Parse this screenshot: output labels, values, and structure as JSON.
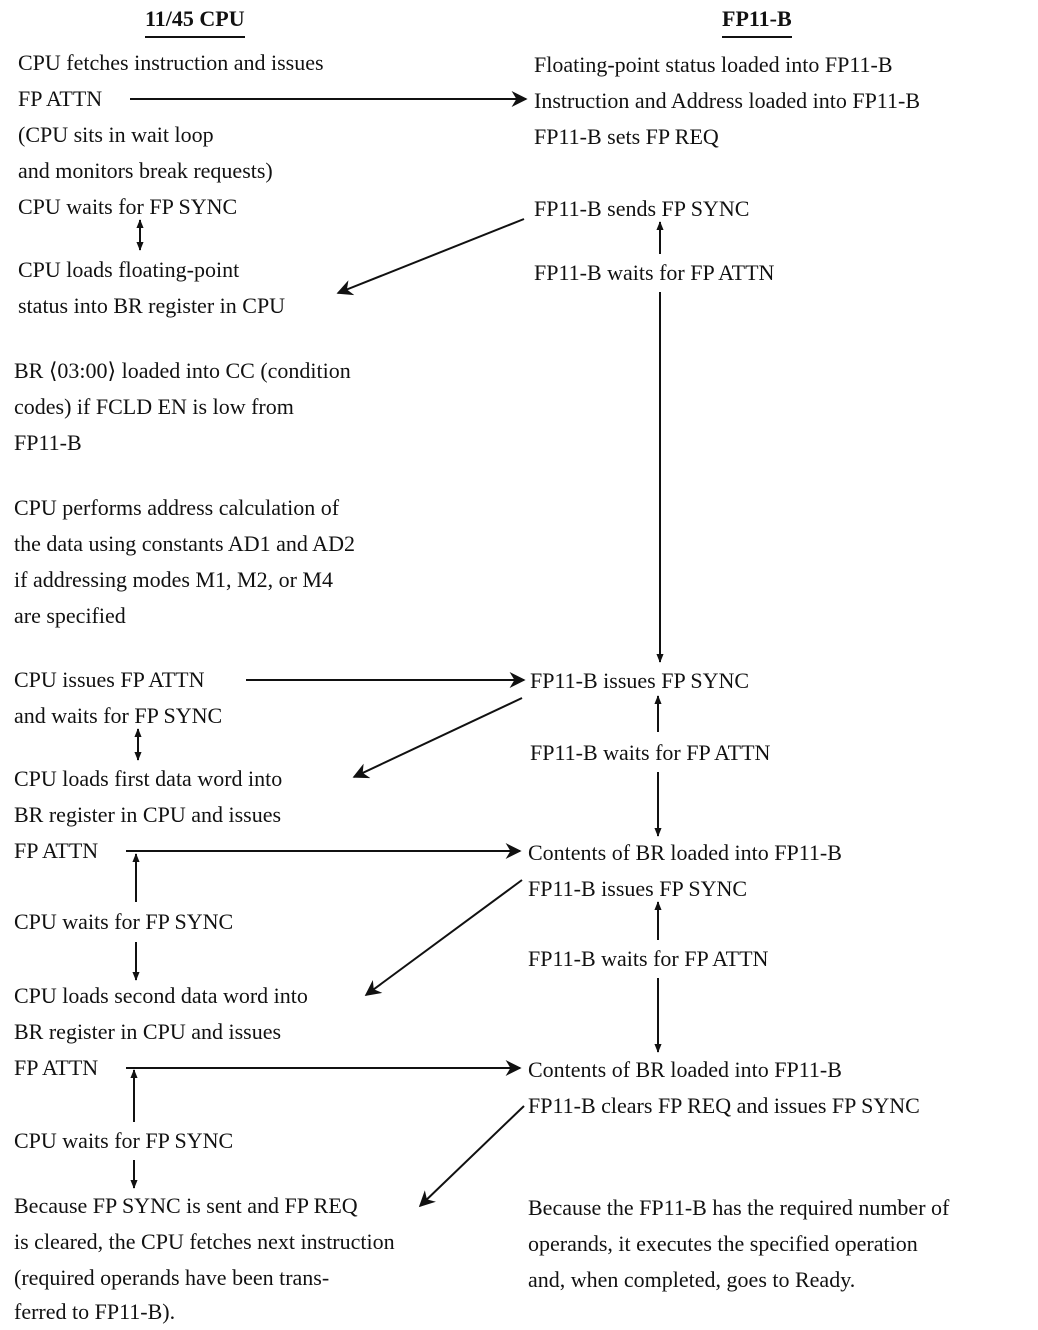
{
  "headers": {
    "cpu": "11/45 CPU",
    "fpu": "FP11-B"
  },
  "cpu": [
    "CPU fetches instruction and issues",
    "FP ATTN",
    "(CPU sits in wait loop",
    "and monitors break requests)",
    "CPU waits for FP SYNC",
    "CPU loads floating-point",
    "status into BR register in CPU",
    "BR ⟨03:00⟩ loaded into CC (condition",
    "codes) if FCLD EN is low from",
    "FP11-B",
    "CPU performs address calculation of",
    "the data using constants AD1 and AD2",
    "if addressing modes M1, M2, or M4",
    "are specified",
    "CPU issues FP ATTN",
    "and waits for FP SYNC",
    "CPU loads first data word into",
    "BR register in CPU and issues",
    "FP ATTN",
    "CPU waits for FP SYNC",
    "CPU loads second data word into",
    "BR register in CPU and issues",
    "FP ATTN",
    "CPU waits for FP SYNC",
    "Because FP SYNC is sent and FP REQ",
    "is cleared, the CPU fetches next instruction",
    "(required operands have been trans-",
    "ferred to FP11-B)."
  ],
  "fpu": [
    "Floating-point status loaded into FP11-B",
    "Instruction and Address loaded into FP11-B",
    "FP11-B sets FP REQ",
    "FP11-B sends FP SYNC",
    "FP11-B waits for FP ATTN",
    "FP11-B issues FP SYNC",
    "FP11-B waits for FP ATTN",
    "Contents of BR loaded into FP11-B",
    "FP11-B issues FP SYNC",
    "FP11-B waits for FP ATTN",
    "Contents of BR loaded into FP11-B",
    "FP11-B clears FP REQ and issues FP SYNC",
    "Because the FP11-B has the required number of",
    "operands, it executes the specified operation",
    "and, when completed, goes to Ready."
  ]
}
